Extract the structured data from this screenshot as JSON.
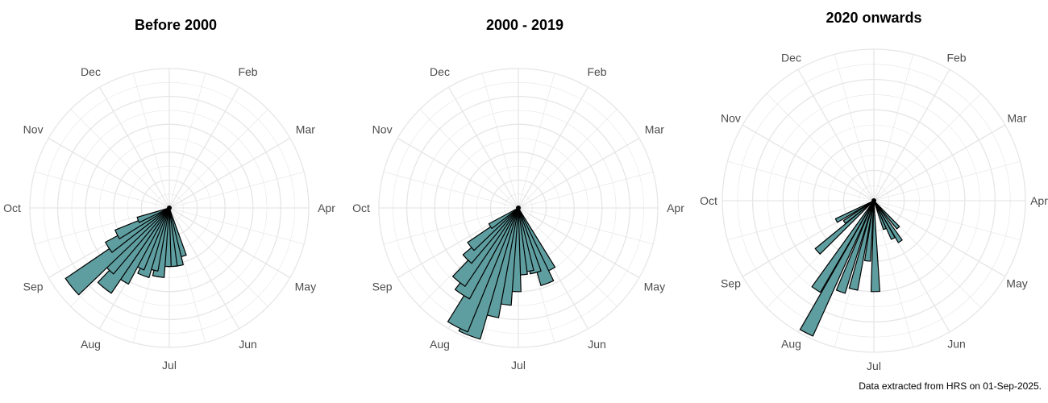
{
  "caption": "Data extracted from HRS on 01-Sep-2025.",
  "style": {
    "bar_fill": "#5f9ea0",
    "bar_stroke": "#000000",
    "grid": "#e6e6e6",
    "label": "#4d4d4d"
  },
  "months": [
    "Jan",
    "Feb",
    "Mar",
    "Apr",
    "May",
    "Jun",
    "Jul",
    "Aug",
    "Sep",
    "Oct",
    "Nov",
    "Dec"
  ],
  "chart_data": [
    {
      "type": "polar-bar",
      "title": "Before 2000",
      "radial_max": 5,
      "grid_rings": [
        1,
        2,
        3,
        4,
        5
      ],
      "bar_width_deg": 9.6,
      "bars": [
        {
          "angle_deg": 165,
          "value": 1.8
        },
        {
          "angle_deg": 171,
          "value": 2.1
        },
        {
          "angle_deg": 177,
          "value": 2.1
        },
        {
          "angle_deg": 183,
          "value": 2.1
        },
        {
          "angle_deg": 189,
          "value": 2.5
        },
        {
          "angle_deg": 195,
          "value": 2.3
        },
        {
          "angle_deg": 201,
          "value": 2.6
        },
        {
          "angle_deg": 207,
          "value": 2.4
        },
        {
          "angle_deg": 213,
          "value": 3.1
        },
        {
          "angle_deg": 219,
          "value": 3.7
        },
        {
          "angle_deg": 225,
          "value": 3.1
        },
        {
          "angle_deg": 231,
          "value": 4.5
        },
        {
          "angle_deg": 237,
          "value": 2.6
        },
        {
          "angle_deg": 243,
          "value": 2.1
        },
        {
          "angle_deg": 249,
          "value": 1.2
        }
      ]
    },
    {
      "type": "polar-bar",
      "title": "2000 - 2019",
      "radial_max": 5,
      "grid_rings": [
        1,
        2,
        3,
        4,
        5
      ],
      "bar_width_deg": 9.6,
      "bars": [
        {
          "angle_deg": 153,
          "value": 2.5
        },
        {
          "angle_deg": 159,
          "value": 2.9
        },
        {
          "angle_deg": 165,
          "value": 2.4
        },
        {
          "angle_deg": 171,
          "value": 2.3
        },
        {
          "angle_deg": 177,
          "value": 2.4
        },
        {
          "angle_deg": 183,
          "value": 3.0
        },
        {
          "angle_deg": 189,
          "value": 3.5
        },
        {
          "angle_deg": 195,
          "value": 4.0
        },
        {
          "angle_deg": 201,
          "value": 4.9
        },
        {
          "angle_deg": 207,
          "value": 4.8
        },
        {
          "angle_deg": 213,
          "value": 3.7
        },
        {
          "angle_deg": 219,
          "value": 3.4
        },
        {
          "angle_deg": 225,
          "value": 2.6
        },
        {
          "angle_deg": 231,
          "value": 2.2
        },
        {
          "angle_deg": 237,
          "value": 1.2
        }
      ]
    },
    {
      "type": "polar-bar",
      "title": "2020 onwards",
      "radial_max": 5,
      "grid_rings": [
        1,
        2,
        3,
        4,
        5
      ],
      "bar_width_deg": 5.5,
      "bars": [
        {
          "angle_deg": 138,
          "value": 1.2
        },
        {
          "angle_deg": 147,
          "value": 1.6
        },
        {
          "angle_deg": 153,
          "value": 1.4
        },
        {
          "angle_deg": 159,
          "value": 1.0
        },
        {
          "angle_deg": 179,
          "value": 3.0
        },
        {
          "angle_deg": 186,
          "value": 2.0
        },
        {
          "angle_deg": 193,
          "value": 3.0
        },
        {
          "angle_deg": 200,
          "value": 3.2
        },
        {
          "angle_deg": 207,
          "value": 4.9
        },
        {
          "angle_deg": 213,
          "value": 3.5
        },
        {
          "angle_deg": 228,
          "value": 2.5
        },
        {
          "angle_deg": 234,
          "value": 1.2
        },
        {
          "angle_deg": 242,
          "value": 1.4
        }
      ]
    }
  ]
}
